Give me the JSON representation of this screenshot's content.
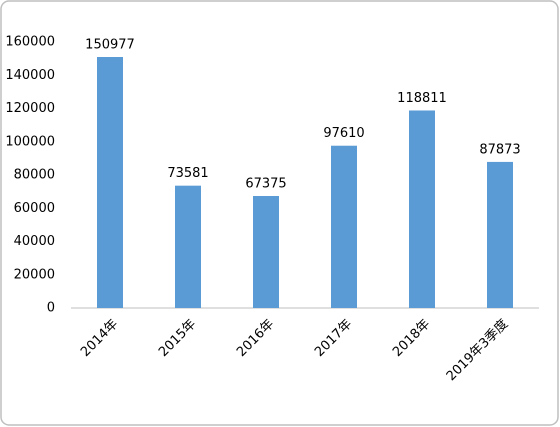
{
  "chart_data": {
    "type": "bar",
    "categories": [
      "2014年",
      "2015年",
      "2016年",
      "2017年",
      "2018年",
      "2019年3季度"
    ],
    "values": [
      150977,
      73581,
      67375,
      97610,
      118811,
      87873
    ],
    "color": "#5b9bd5",
    "ylim": [
      0,
      160000
    ],
    "yticks": [
      0,
      20000,
      40000,
      60000,
      80000,
      100000,
      120000,
      140000,
      160000
    ],
    "grid": false,
    "data_labels": true
  }
}
